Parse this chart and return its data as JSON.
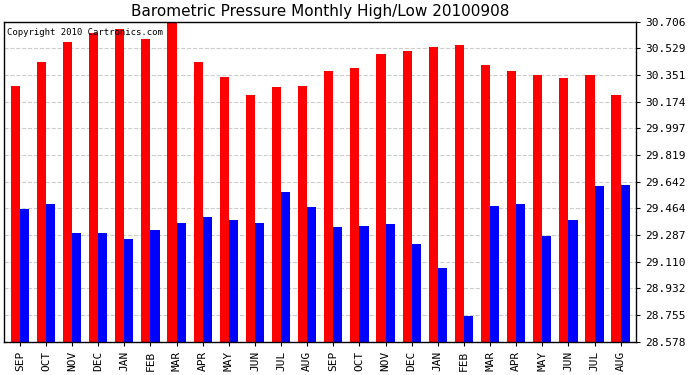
{
  "title": "Barometric Pressure Monthly High/Low 20100908",
  "copyright": "Copyright 2010 Cartronics.com",
  "background_color": "#ffffff",
  "plot_bg_color": "#ffffff",
  "bar_color_high": "#ff0000",
  "bar_color_low": "#0000ff",
  "categories": [
    "SEP",
    "OCT",
    "NOV",
    "DEC",
    "JAN",
    "FEB",
    "MAR",
    "APR",
    "MAY",
    "JUN",
    "JUL",
    "AUG",
    "SEP",
    "OCT",
    "NOV",
    "DEC",
    "JAN",
    "FEB",
    "MAR",
    "APR",
    "MAY",
    "JUN",
    "JUL",
    "AUG"
  ],
  "highs": [
    30.28,
    30.44,
    30.57,
    30.63,
    30.66,
    30.59,
    30.73,
    30.44,
    30.34,
    30.22,
    30.27,
    30.28,
    30.38,
    30.4,
    30.49,
    30.51,
    30.54,
    30.55,
    30.42,
    30.38,
    30.35,
    30.33,
    30.35,
    30.22
  ],
  "lows": [
    29.46,
    29.49,
    29.3,
    29.3,
    29.26,
    29.32,
    29.37,
    29.41,
    29.39,
    29.37,
    29.57,
    29.47,
    29.34,
    29.35,
    29.36,
    29.23,
    29.07,
    28.75,
    29.48,
    29.49,
    29.28,
    29.39,
    29.61,
    29.62
  ],
  "yticks": [
    28.578,
    28.755,
    28.932,
    29.11,
    29.287,
    29.464,
    29.642,
    29.819,
    29.997,
    30.174,
    30.351,
    30.529,
    30.706
  ],
  "ylim_min": 28.578,
  "ylim_max": 30.706,
  "grid_color": "#cccccc",
  "grid_style": "--",
  "bar_width": 0.35,
  "title_fontsize": 11,
  "tick_fontsize": 8
}
